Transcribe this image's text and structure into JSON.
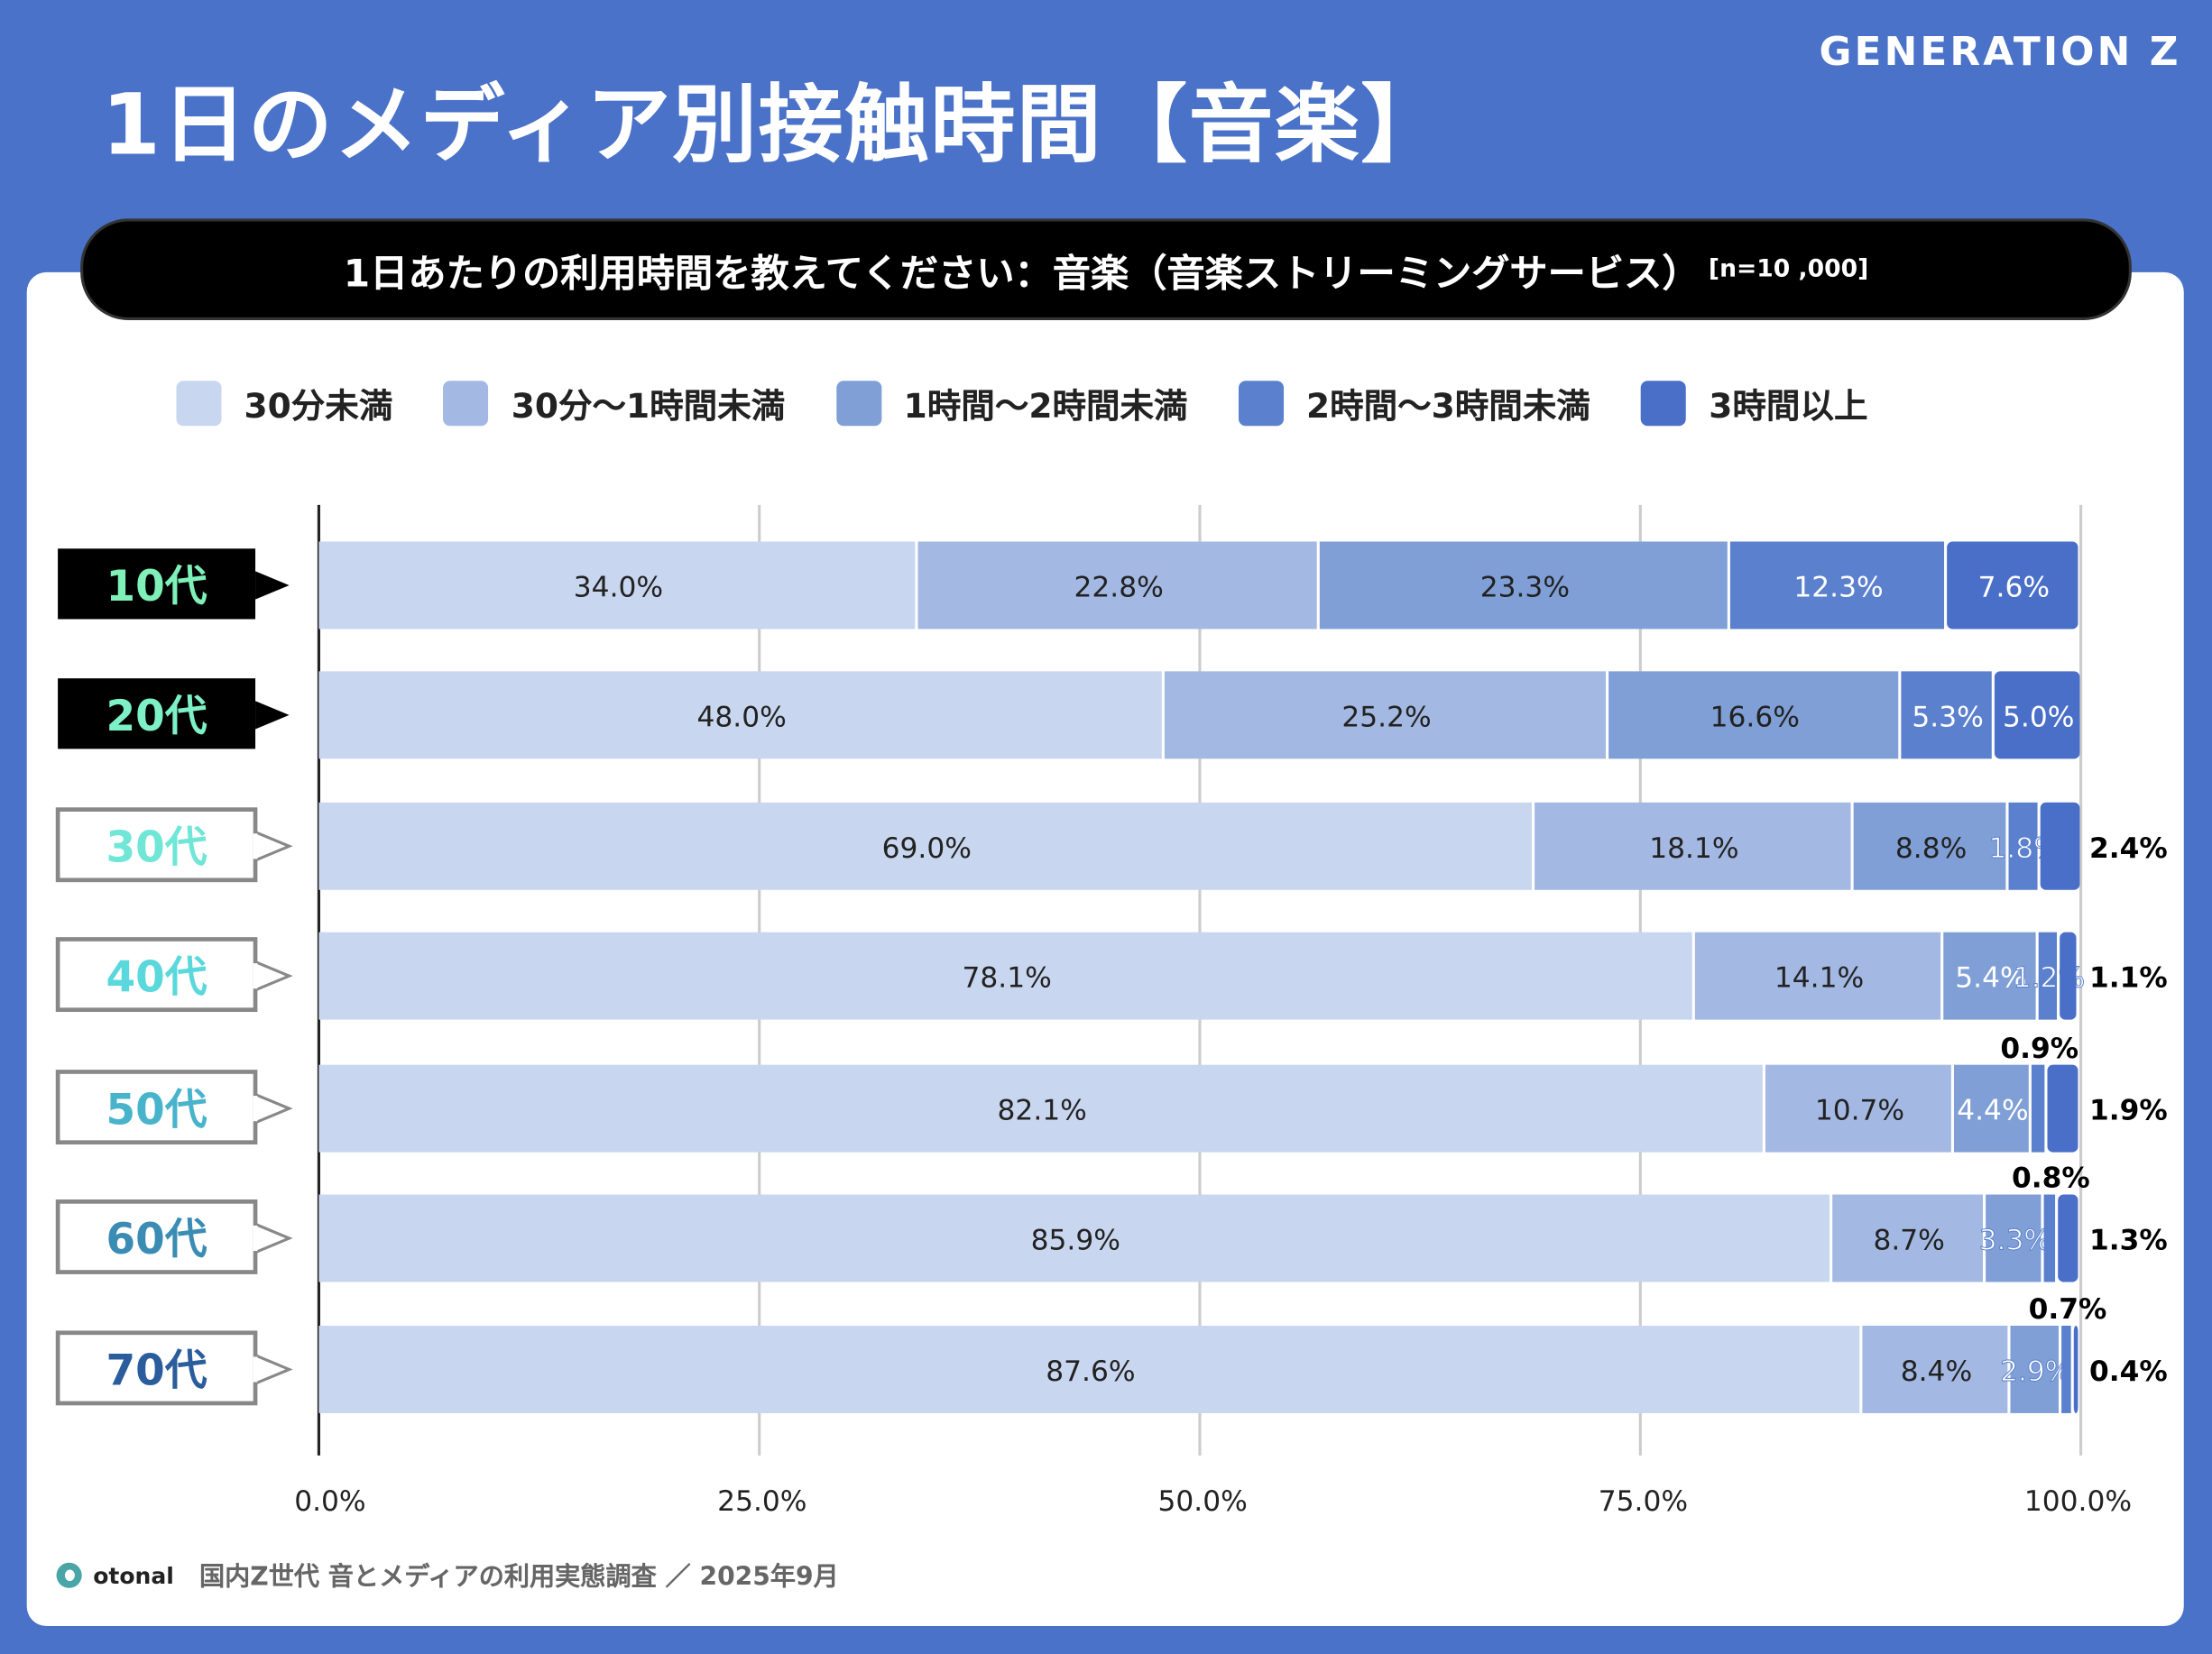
{
  "header": {
    "title": "1日のメディア別接触時間【音楽】",
    "brand": "GENERATION Z"
  },
  "question": {
    "text": "1日あたりの利用時間を教えてください：音楽（音楽ストリーミングサービス）",
    "n": "[n=10 ,000]"
  },
  "footer": {
    "logo": "otonal",
    "source": "国内Z世代 音とメディアの利用実態調査 ／ 2025年9月"
  },
  "chart_data": {
    "type": "bar",
    "orientation": "horizontal-stacked-100",
    "categories": [
      "10代",
      "20代",
      "30代",
      "40代",
      "50代",
      "60代",
      "70代"
    ],
    "category_colors": [
      "#7ef0b8",
      "#7ef0c8",
      "#6fe6d6",
      "#5ad8dc",
      "#48b4cc",
      "#3b8cb4",
      "#2b5d9c"
    ],
    "series": [
      {
        "name": "30分未満",
        "color": "#c9d6ef",
        "values": [
          34.0,
          48.0,
          69.0,
          78.1,
          82.1,
          85.9,
          87.6
        ]
      },
      {
        "name": "30分〜1時間未満",
        "color": "#a3b8e2",
        "values": [
          22.8,
          25.2,
          18.1,
          14.1,
          10.7,
          8.7,
          8.4
        ]
      },
      {
        "name": "1時間〜2時間未満",
        "color": "#7f9fd6",
        "values": [
          23.3,
          16.6,
          8.8,
          5.4,
          4.4,
          3.3,
          2.9
        ]
      },
      {
        "name": "2時間〜3時間未満",
        "color": "#5b80cd",
        "values": [
          12.3,
          5.3,
          1.8,
          1.2,
          0.9,
          0.8,
          0.7
        ]
      },
      {
        "name": "3時間以上",
        "color": "#4a6fc8",
        "values": [
          7.6,
          5.0,
          2.4,
          1.1,
          1.9,
          1.3,
          0.4
        ]
      }
    ],
    "xlim": [
      0,
      100
    ],
    "xticks": [
      "0.0%",
      "25.0%",
      "50.0%",
      "75.0%",
      "100.0%"
    ],
    "grid": true,
    "legend": "top"
  }
}
